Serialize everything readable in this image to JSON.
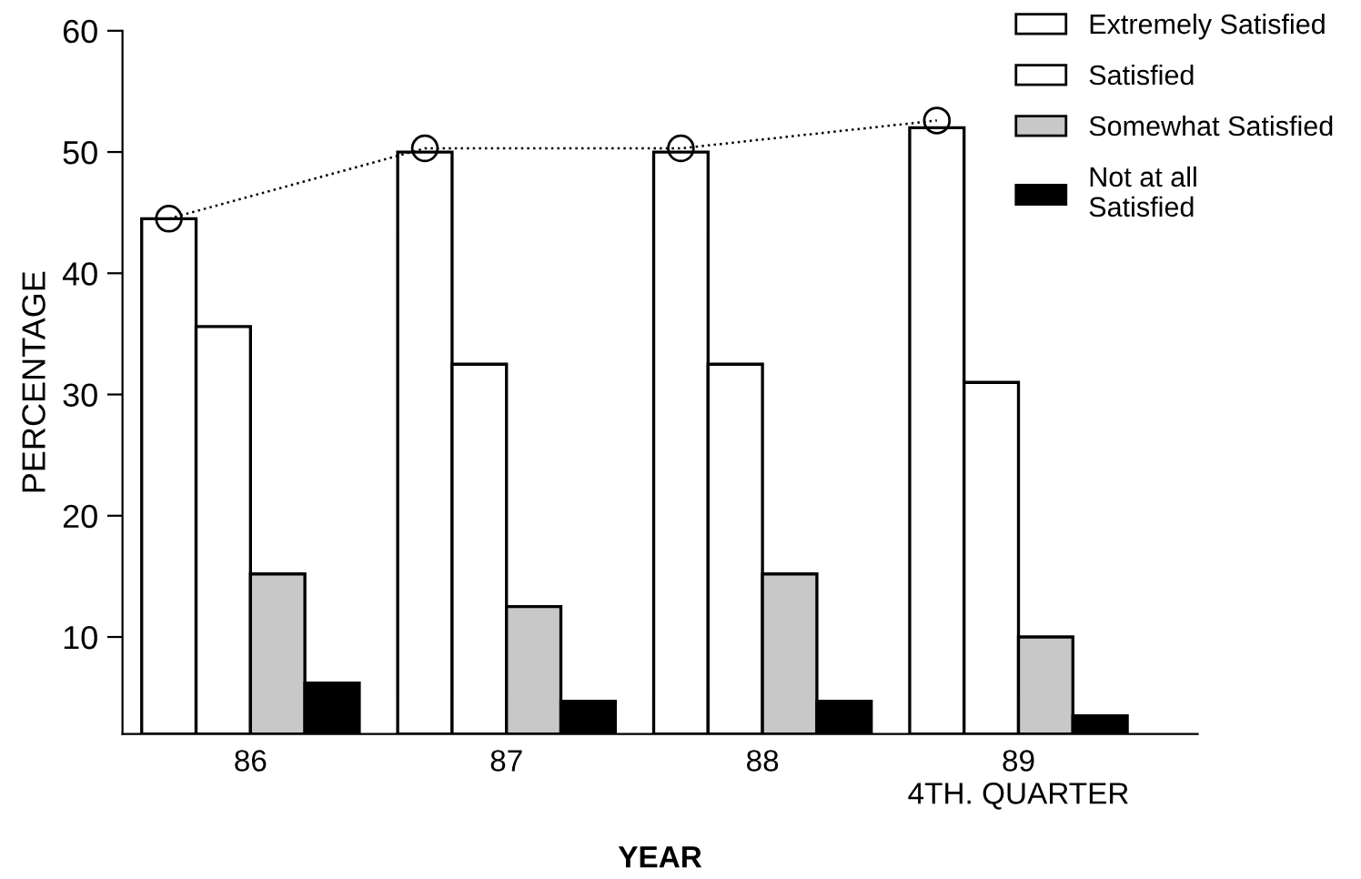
{
  "chart_data": {
    "type": "bar",
    "xlabel": "YEAR",
    "ylabel": "PERCENTAGE",
    "categories": [
      "86",
      "87",
      "88",
      "89\n4TH. QUARTER"
    ],
    "series": [
      {
        "name": "Extremely Satisfied",
        "color": "#ffffff",
        "values": [
          44.5,
          50,
          50,
          52
        ]
      },
      {
        "name": "Satisfied",
        "color": "#ffffff",
        "values": [
          35.6,
          32.5,
          32.5,
          31
        ]
      },
      {
        "name": "Somewhat Satisfied",
        "color": "#c8c8c8",
        "values": [
          15.2,
          12.5,
          15.2,
          10
        ]
      },
      {
        "name": "Not at all\nSatisfied",
        "color": "#000000",
        "values": [
          6.2,
          4.7,
          4.7,
          3.5
        ]
      },
      {
        "type": "line",
        "color": "#000000",
        "marker": "circle",
        "line_style": "dotted",
        "values": [
          44.5,
          50.3,
          50.3,
          52.6
        ]
      }
    ],
    "ylim": [
      2,
      60
    ],
    "yticks": [
      10,
      20,
      30,
      40,
      50,
      60
    ],
    "grid": false,
    "legend": "top right"
  }
}
